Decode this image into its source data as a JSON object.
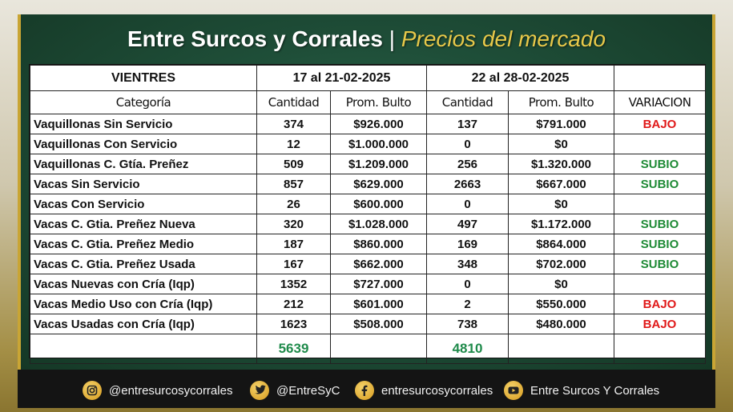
{
  "title": {
    "main": "Entre Surcos y Corrales",
    "separator": "|",
    "subtitle": "Precios del mercado"
  },
  "table": {
    "section_label": "VIENTRES",
    "period1": "17 al 21-02-2025",
    "period2": "22 al 28-02-2025",
    "headers": [
      "Categoría",
      "Cantidad",
      "Prom. Bulto",
      "Cantidad",
      "Prom. Bulto",
      "VARIACION"
    ],
    "rows": [
      {
        "categoria": "Vaquillonas Sin Servicio",
        "cant1": "374",
        "prom1": "$926.000",
        "cant2": "137",
        "prom2": "$791.000",
        "variacion": "BAJO"
      },
      {
        "categoria": "Vaquillonas Con Servicio",
        "cant1": "12",
        "prom1": "$1.000.000",
        "cant2": "0",
        "prom2": "$0",
        "variacion": ""
      },
      {
        "categoria": "Vaquillonas C. Gtía. Preñez",
        "cant1": "509",
        "prom1": "$1.209.000",
        "cant2": "256",
        "prom2": "$1.320.000",
        "variacion": "SUBIO"
      },
      {
        "categoria": "Vacas Sin Servicio",
        "cant1": "857",
        "prom1": "$629.000",
        "cant2": "2663",
        "prom2": "$667.000",
        "variacion": "SUBIO"
      },
      {
        "categoria": "Vacas Con Servicio",
        "cant1": "26",
        "prom1": "$600.000",
        "cant2": "0",
        "prom2": "$0",
        "variacion": ""
      },
      {
        "categoria": "Vacas C. Gtia. Preñez Nueva",
        "cant1": "320",
        "prom1": "$1.028.000",
        "cant2": "497",
        "prom2": "$1.172.000",
        "variacion": "SUBIO"
      },
      {
        "categoria": "Vacas C. Gtia. Preñez Medio",
        "cant1": "187",
        "prom1": "$860.000",
        "cant2": "169",
        "prom2": "$864.000",
        "variacion": "SUBIO"
      },
      {
        "categoria": "Vacas C. Gtia. Preñez Usada",
        "cant1": "167",
        "prom1": "$662.000",
        "cant2": "348",
        "prom2": "$702.000",
        "variacion": "SUBIO"
      },
      {
        "categoria": "Vacas Nuevas con Cría (Iqp)",
        "cant1": "1352",
        "prom1": "$727.000",
        "cant2": "0",
        "prom2": "$0",
        "variacion": ""
      },
      {
        "categoria": "Vacas Medio Uso con Cría (Iqp)",
        "cant1": "212",
        "prom1": "$601.000",
        "cant2": "2",
        "prom2": "$550.000",
        "variacion": "BAJO"
      },
      {
        "categoria": "Vacas Usadas con Cría (Iqp)",
        "cant1": "1623",
        "prom1": "$508.000",
        "cant2": "738",
        "prom2": "$480.000",
        "variacion": "BAJO"
      }
    ],
    "totals": {
      "cant1": "5639",
      "cant2": "4810"
    }
  },
  "colors": {
    "bajo": "#e01919",
    "subio": "#1e8a35",
    "total": "#1e8a4a",
    "accent_gold": "#c9a534",
    "panel_green": "#1f4f39"
  },
  "footer": {
    "socials": [
      {
        "icon": "instagram-icon",
        "label": "@entresurcosycorrales"
      },
      {
        "icon": "twitter-icon",
        "label": "@EntreSyC"
      },
      {
        "icon": "facebook-icon",
        "label": "entresurcosycorrales"
      },
      {
        "icon": "youtube-icon",
        "label": "Entre Surcos Y Corrales"
      }
    ]
  }
}
